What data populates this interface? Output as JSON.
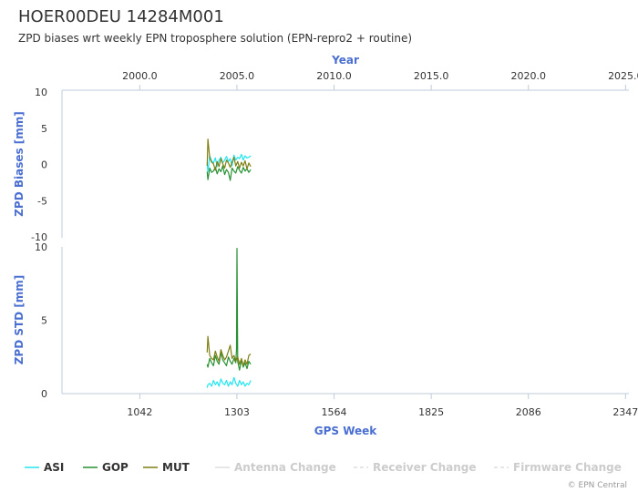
{
  "title": "HOER00DEU 14284M001",
  "subtitle": "ZPD biases wrt weekly EPN troposphere solution (EPN-repro2 + routine)",
  "credit": "© EPN Central",
  "colors": {
    "ASI": "#22e5ef",
    "GOP": "#279133",
    "MUT": "#7e7f12",
    "axis_title": "#4a6fd1",
    "axis_line": "#bfcbd9",
    "grid": "#e6e6e6",
    "text": "#333333",
    "legend_disabled": "#cccccc"
  },
  "legend": [
    {
      "label": "ASI",
      "key": "ASI",
      "style": "solid",
      "enabled": true
    },
    {
      "label": "GOP",
      "key": "GOP",
      "style": "solid",
      "enabled": true
    },
    {
      "label": "MUT",
      "key": "MUT",
      "style": "solid",
      "enabled": true
    },
    {
      "label": "Antenna Change",
      "key": "antenna",
      "style": "solid",
      "enabled": false
    },
    {
      "label": "Receiver Change",
      "key": "receiver",
      "style": "dashed",
      "enabled": false
    },
    {
      "label": "Firmware Change",
      "key": "firmware",
      "style": "dashed",
      "enabled": false
    }
  ],
  "chart_data": [
    {
      "type": "line",
      "name": "bias-panel",
      "xlabel_top": "Year",
      "top_axis_ticks": [
        "2000.0",
        "2005.0",
        "2010.0",
        "2015.0",
        "2020.0",
        "2025.0"
      ],
      "top_axis_tick_weeks": [
        1042,
        1303,
        1564,
        1825,
        2086,
        2347
      ],
      "ylabel": "ZPD Biases [mm]",
      "ylim": [
        -10,
        10
      ],
      "yticks": [
        "10",
        "5",
        "0",
        "-5",
        "-10"
      ],
      "xlim": [
        833,
        2356
      ],
      "series": [
        {
          "name": "ASI",
          "x": [
            1223,
            1225,
            1230,
            1235,
            1240,
            1245,
            1250,
            1255,
            1260,
            1265,
            1270,
            1275,
            1280,
            1285,
            1290,
            1295,
            1300,
            1305,
            1310,
            1315,
            1320,
            1325,
            1330,
            1335,
            1340
          ],
          "values": [
            0.2,
            -1.0,
            1.2,
            0.5,
            0.2,
            0.9,
            -0.3,
            0.6,
            1.0,
            0.2,
            0.6,
            1.1,
            0.4,
            0.8,
            -0.2,
            1.3,
            0.6,
            1.0,
            0.8,
            1.4,
            0.6,
            1.2,
            0.9,
            1.0,
            1.2
          ]
        },
        {
          "name": "GOP",
          "x": [
            1223,
            1225,
            1230,
            1235,
            1240,
            1245,
            1250,
            1255,
            1260,
            1265,
            1270,
            1275,
            1280,
            1285,
            1290,
            1295,
            1300,
            1305,
            1310,
            1315,
            1320,
            1325,
            1330,
            1335,
            1340
          ],
          "values": [
            -1.0,
            -2.1,
            -0.5,
            -1.1,
            -0.9,
            -0.4,
            -1.3,
            -0.6,
            -1.0,
            -0.2,
            -1.4,
            -0.7,
            -1.1,
            -2.2,
            -0.5,
            -0.9,
            -1.2,
            -0.3,
            -0.8,
            -1.2,
            -0.4,
            -0.9,
            -0.6,
            -1.1,
            -0.7
          ]
        },
        {
          "name": "MUT",
          "x": [
            1223,
            1225,
            1230,
            1235,
            1240,
            1245,
            1250,
            1255,
            1260,
            1265,
            1270,
            1275,
            1280,
            1285,
            1290,
            1295,
            1300,
            1305,
            1310,
            1315,
            1320,
            1325,
            1330,
            1335,
            1340
          ],
          "values": [
            -0.2,
            3.5,
            0.9,
            0.3,
            0.1,
            -0.8,
            0.4,
            -0.3,
            0.8,
            0.1,
            -0.5,
            0.6,
            0.2,
            -0.4,
            0.3,
            1.0,
            -0.2,
            0.4,
            -0.5,
            0.3,
            -0.2,
            0.5,
            -0.6,
            0.2,
            -0.3
          ]
        }
      ]
    },
    {
      "type": "line",
      "name": "std-panel",
      "xlabel": "GPS Week",
      "xticks": [
        "1042",
        "1303",
        "1564",
        "1825",
        "2086",
        "2347"
      ],
      "xtick_values": [
        1042,
        1303,
        1564,
        1825,
        2086,
        2347
      ],
      "ylabel": "ZPD STD [mm]",
      "ylim": [
        0,
        10
      ],
      "yticks": [
        "10",
        "5",
        "0"
      ],
      "xlim": [
        833,
        2356
      ],
      "series": [
        {
          "name": "ASI",
          "x": [
            1223,
            1225,
            1230,
            1235,
            1240,
            1245,
            1250,
            1255,
            1260,
            1265,
            1270,
            1275,
            1280,
            1285,
            1290,
            1295,
            1300,
            1305,
            1310,
            1315,
            1320,
            1325,
            1330,
            1335,
            1340
          ],
          "values": [
            0.4,
            0.6,
            0.7,
            0.5,
            0.9,
            0.6,
            0.8,
            0.5,
            1.0,
            0.7,
            0.6,
            0.9,
            0.5,
            0.8,
            0.6,
            1.1,
            0.7,
            0.5,
            0.9,
            0.6,
            0.8,
            0.5,
            0.7,
            0.6,
            0.9
          ]
        },
        {
          "name": "GOP",
          "x": [
            1223,
            1225,
            1230,
            1235,
            1240,
            1245,
            1250,
            1255,
            1260,
            1265,
            1270,
            1275,
            1280,
            1285,
            1290,
            1295,
            1300,
            1302,
            1303,
            1305,
            1310,
            1315,
            1320,
            1325,
            1330,
            1335,
            1340
          ],
          "values": [
            2.0,
            1.8,
            2.4,
            2.1,
            1.9,
            2.6,
            2.2,
            2.0,
            2.8,
            2.3,
            2.1,
            1.9,
            2.5,
            2.2,
            2.0,
            2.4,
            2.1,
            3.0,
            9.9,
            2.2,
            1.6,
            2.3,
            1.8,
            2.1,
            1.7,
            2.2,
            2.0
          ]
        },
        {
          "name": "MUT",
          "x": [
            1223,
            1225,
            1230,
            1235,
            1240,
            1245,
            1250,
            1255,
            1260,
            1265,
            1270,
            1275,
            1280,
            1285,
            1290,
            1295,
            1300,
            1305,
            1310,
            1315,
            1320,
            1325,
            1330,
            1335,
            1340
          ],
          "values": [
            2.8,
            3.9,
            2.6,
            2.4,
            2.3,
            2.9,
            2.5,
            2.2,
            3.0,
            2.6,
            2.3,
            2.5,
            2.9,
            3.3,
            2.4,
            2.6,
            2.2,
            2.5,
            2.0,
            2.4,
            1.9,
            2.3,
            2.0,
            2.6,
            2.7
          ]
        }
      ]
    }
  ]
}
